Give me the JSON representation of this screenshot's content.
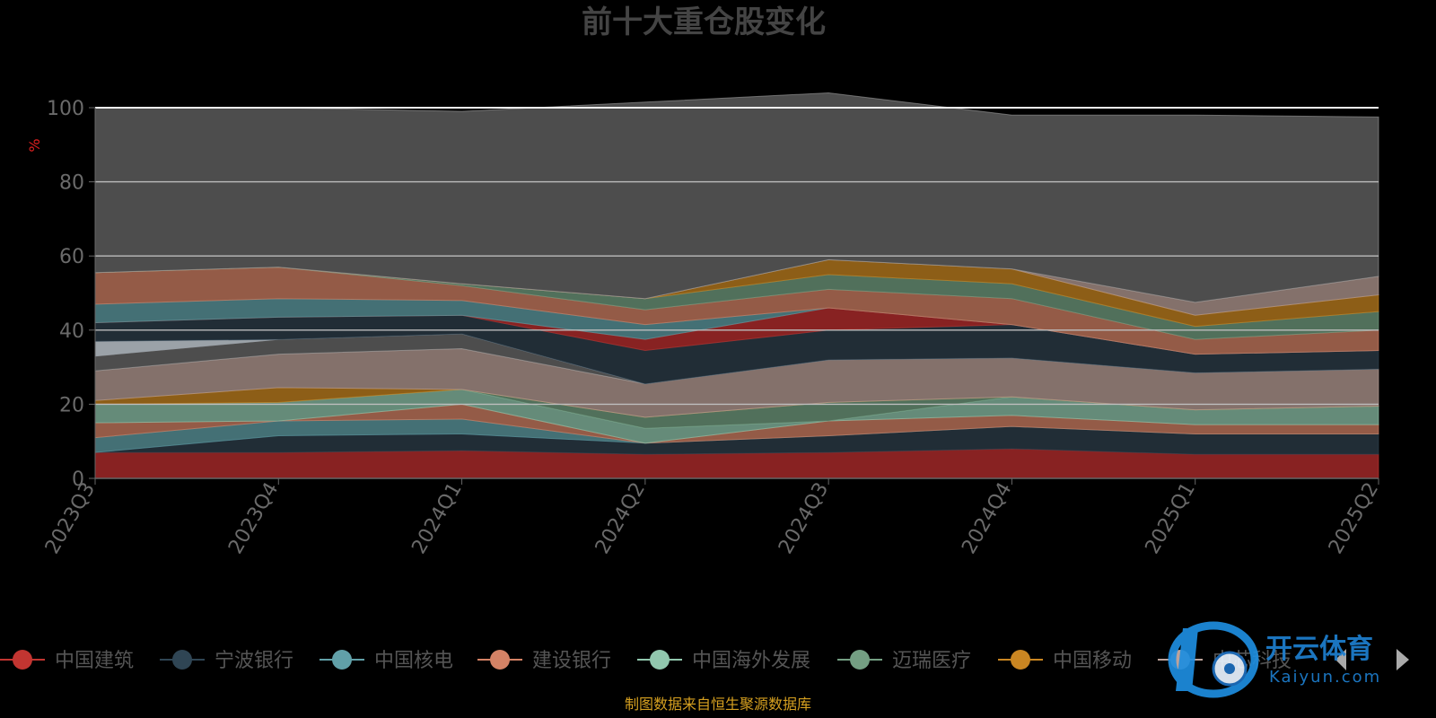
{
  "chart_data": {
    "type": "area",
    "stacked": true,
    "title": "前十大重仓股变化",
    "ylabel": "%",
    "ylim": [
      0,
      100
    ],
    "y_ticks": [
      0,
      20,
      40,
      60,
      80,
      100
    ],
    "grid": true,
    "legend_position": "bottom",
    "categories": [
      "2023Q3",
      "2023Q4",
      "2024Q1",
      "2024Q2",
      "2024Q3",
      "2024Q4",
      "2025Q1",
      "2025Q2"
    ],
    "series": [
      {
        "name": "中国建筑",
        "color": "#c23531",
        "fill": "#882222",
        "values": [
          7,
          7,
          7.5,
          6.5,
          7,
          8,
          6.5,
          6.5
        ]
      },
      {
        "name": "宁波银行",
        "color": "#2f4554",
        "fill": "#212d36",
        "values": [
          0,
          4.5,
          4.5,
          3,
          4.5,
          6,
          5.5,
          5.5
        ]
      },
      {
        "name": "中国核电",
        "color": "#61a0a8",
        "fill": "#447075",
        "values": [
          4,
          4,
          4,
          0,
          0,
          0,
          0,
          0
        ]
      },
      {
        "name": "建设银行",
        "color": "#d48265",
        "fill": "#945b47",
        "values": [
          4,
          0,
          4,
          0,
          4,
          3,
          2.5,
          2.5
        ]
      },
      {
        "name": "中国海外发展",
        "color": "#91c7ae",
        "fill": "#658b79",
        "values": [
          5,
          5,
          4,
          4,
          0,
          5,
          4,
          5
        ]
      },
      {
        "name": "迈瑞医疗",
        "color": "#749f83",
        "fill": "#51705b",
        "values": [
          0,
          0,
          0,
          3,
          5,
          0,
          0,
          0
        ]
      },
      {
        "name": "中国移动",
        "color": "#ca8622",
        "fill": "#8d5e17",
        "values": [
          1,
          4,
          0,
          0,
          0,
          0,
          0,
          0
        ]
      },
      {
        "name": "中芯科技",
        "color": "#bda29a",
        "fill": "#84716b",
        "values": [
          8,
          9,
          11,
          9,
          11.5,
          10.5,
          10,
          10
        ]
      },
      {
        "name": "",
        "color": "#9e9e9e",
        "fill": "#4d4d4d",
        "values": [
          4,
          4,
          4,
          0,
          0,
          0,
          0,
          0
        ]
      },
      {
        "name": "",
        "color": "#a0a8b0",
        "fill": "#9ba2a8",
        "values": [
          4,
          0,
          0,
          0,
          0,
          0,
          0,
          0
        ]
      },
      {
        "name": "",
        "color": "#2f4554",
        "fill": "#212d36",
        "values": [
          5,
          6,
          5,
          9,
          8,
          9,
          5,
          5
        ]
      },
      {
        "name": "",
        "color": "#c23531",
        "fill": "#882222",
        "values": [
          0,
          0,
          0,
          3,
          6,
          0,
          0,
          0
        ]
      },
      {
        "name": "",
        "color": "#61a0a8",
        "fill": "#447075",
        "values": [
          5,
          5,
          4,
          4,
          0,
          0,
          0,
          0
        ]
      },
      {
        "name": "",
        "color": "#d48265",
        "fill": "#945b47",
        "values": [
          8.5,
          8.5,
          4,
          4,
          5,
          7,
          4,
          5.5
        ]
      },
      {
        "name": "",
        "color": "#749f83",
        "fill": "#51705b",
        "values": [
          0,
          0,
          0.5,
          3,
          4,
          4,
          3.5,
          5
        ]
      },
      {
        "name": "",
        "color": "#ca8622",
        "fill": "#8d5e17",
        "values": [
          0,
          0,
          0,
          0,
          4,
          4,
          3,
          4.5
        ]
      },
      {
        "name": "",
        "color": "#bda29a",
        "fill": "#84716b",
        "values": [
          0,
          0,
          0,
          0,
          0,
          0,
          3.5,
          5
        ]
      },
      {
        "name": "",
        "color": "#9e9e9e",
        "fill": "#4d4d4d",
        "values": [
          44.5,
          43,
          46.5,
          53,
          45,
          41.5,
          50.5,
          43
        ]
      }
    ],
    "visible_legend_count": 8,
    "footnote": "制图数据来自恒生聚源数据库"
  },
  "watermark": {
    "brand_text": "开云体育",
    "sub_text": "Kaiyun.com",
    "icon": "soccer-ball-logo-icon"
  },
  "legend_nav": {
    "prev_icon": "triangle-left-icon",
    "next_icon": "triangle-right-icon"
  }
}
